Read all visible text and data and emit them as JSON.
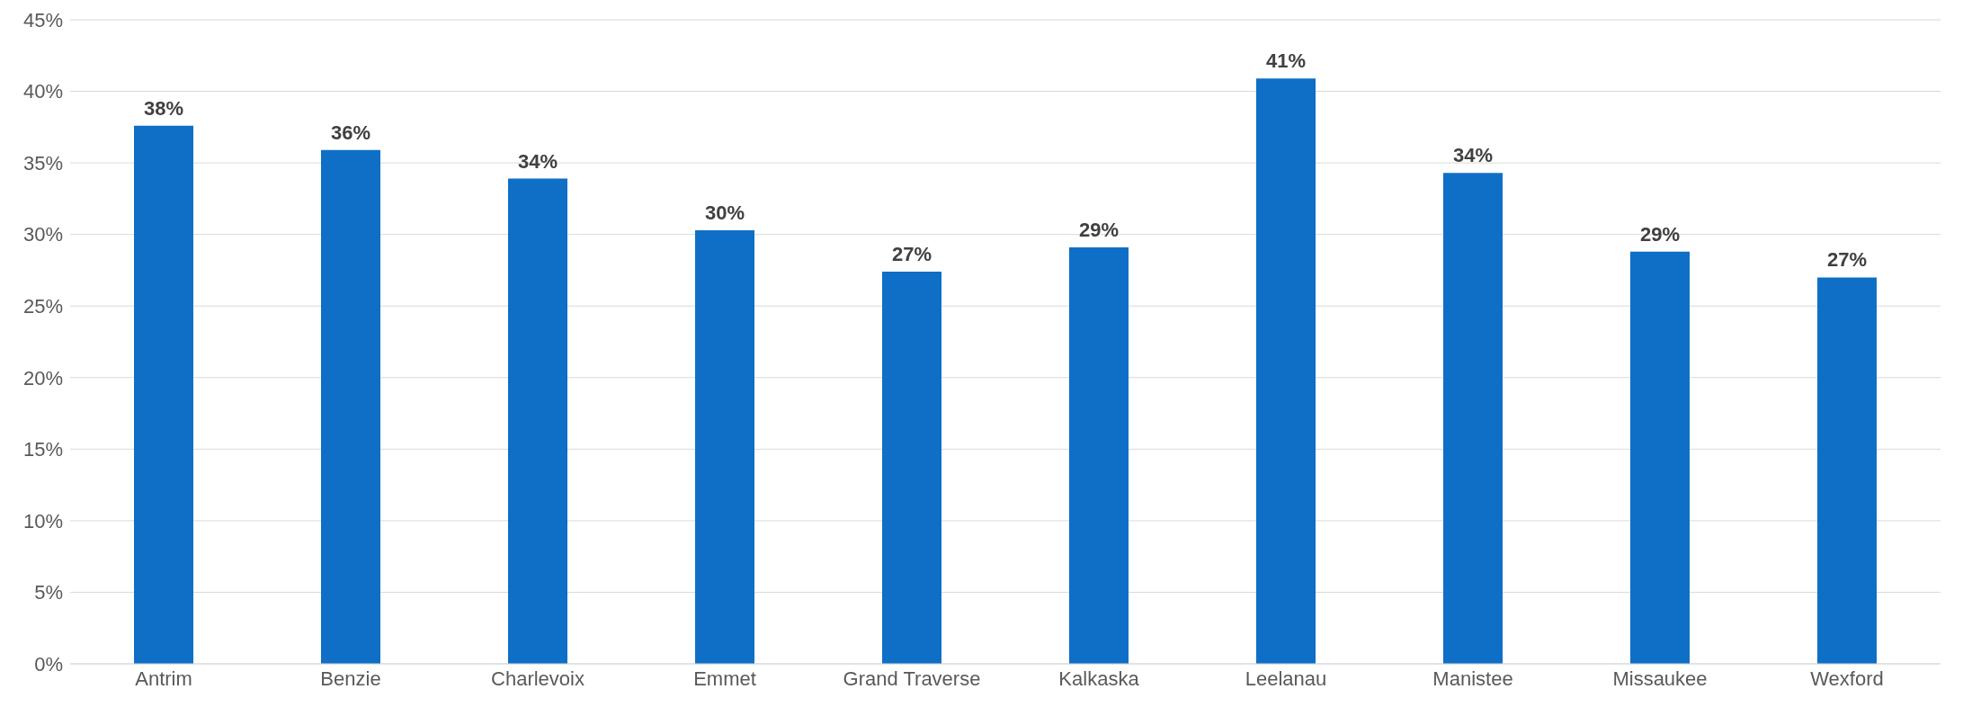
{
  "chart_data": {
    "type": "bar",
    "categories": [
      "Antrim",
      "Benzie",
      "Charlevoix",
      "Emmet",
      "Grand Traverse",
      "Kalkaska",
      "Leelanau",
      "Manistee",
      "Missaukee",
      "Wexford"
    ],
    "values": [
      37.6,
      35.9,
      33.9,
      30.3,
      27.4,
      29.1,
      40.9,
      34.3,
      28.8,
      27.0
    ],
    "value_labels": [
      "38%",
      "36%",
      "34%",
      "30%",
      "27%",
      "29%",
      "41%",
      "34%",
      "29%",
      "27%"
    ],
    "color": "#0f6fc6",
    "ylim": [
      0,
      45
    ],
    "yticks": [
      {
        "value": 0,
        "label": "0%"
      },
      {
        "value": 5,
        "label": "5%"
      },
      {
        "value": 10,
        "label": "10%"
      },
      {
        "value": 15,
        "label": "15%"
      },
      {
        "value": 20,
        "label": "20%"
      },
      {
        "value": 25,
        "label": "25%"
      },
      {
        "value": 30,
        "label": "30%"
      },
      {
        "value": 35,
        "label": "35%"
      },
      {
        "value": 40,
        "label": "40%"
      },
      {
        "value": 45,
        "label": "45%"
      }
    ],
    "grid": "y"
  }
}
